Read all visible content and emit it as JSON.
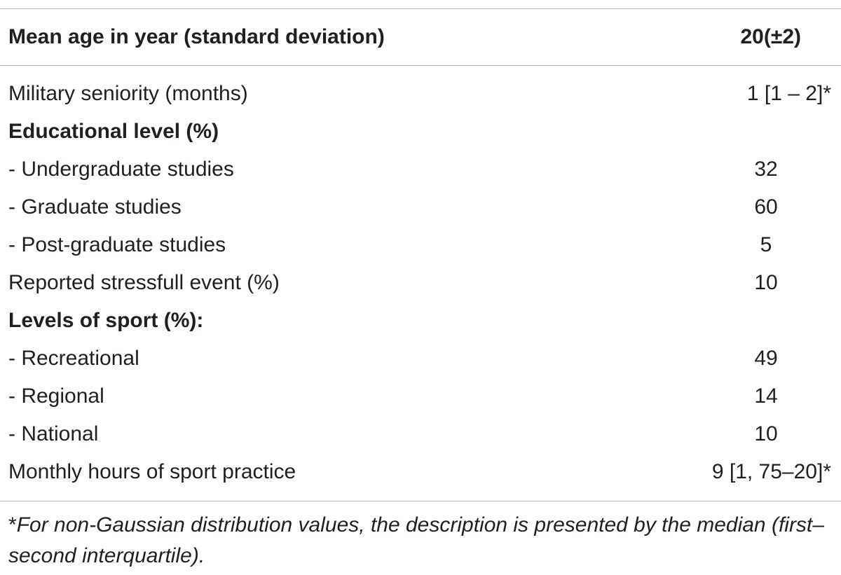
{
  "table": {
    "header": {
      "label": "Mean age in year (standard deviation)",
      "value": "20(±2)"
    },
    "rows": [
      {
        "label": "Military seniority (months)",
        "value": "1 [1 – 2]*",
        "bold": false
      },
      {
        "label": "Educational level (%)",
        "value": "",
        "bold": true
      },
      {
        "label": "- Undergraduate studies",
        "value": "32",
        "bold": false
      },
      {
        "label": "- Graduate studies",
        "value": "60",
        "bold": false
      },
      {
        "label": "- Post-graduate studies",
        "value": "5",
        "bold": false
      },
      {
        "label": "Reported stressfull event (%)",
        "value": "10",
        "bold": false
      },
      {
        "label": "Levels of sport (%):",
        "value": "",
        "bold": true
      },
      {
        "label": "- Recreational",
        "value": "49",
        "bold": false
      },
      {
        "label": "- Regional",
        "value": "14",
        "bold": false
      },
      {
        "label": "- National",
        "value": "10",
        "bold": false
      },
      {
        "label": "Monthly hours of sport practice",
        "value": "9 [1, 75–20]*",
        "bold": false
      }
    ]
  },
  "footnote": {
    "marker": "*",
    "text": "For non-Gaussian distribution values, the description is presented by the median (first–second interquartile)."
  }
}
